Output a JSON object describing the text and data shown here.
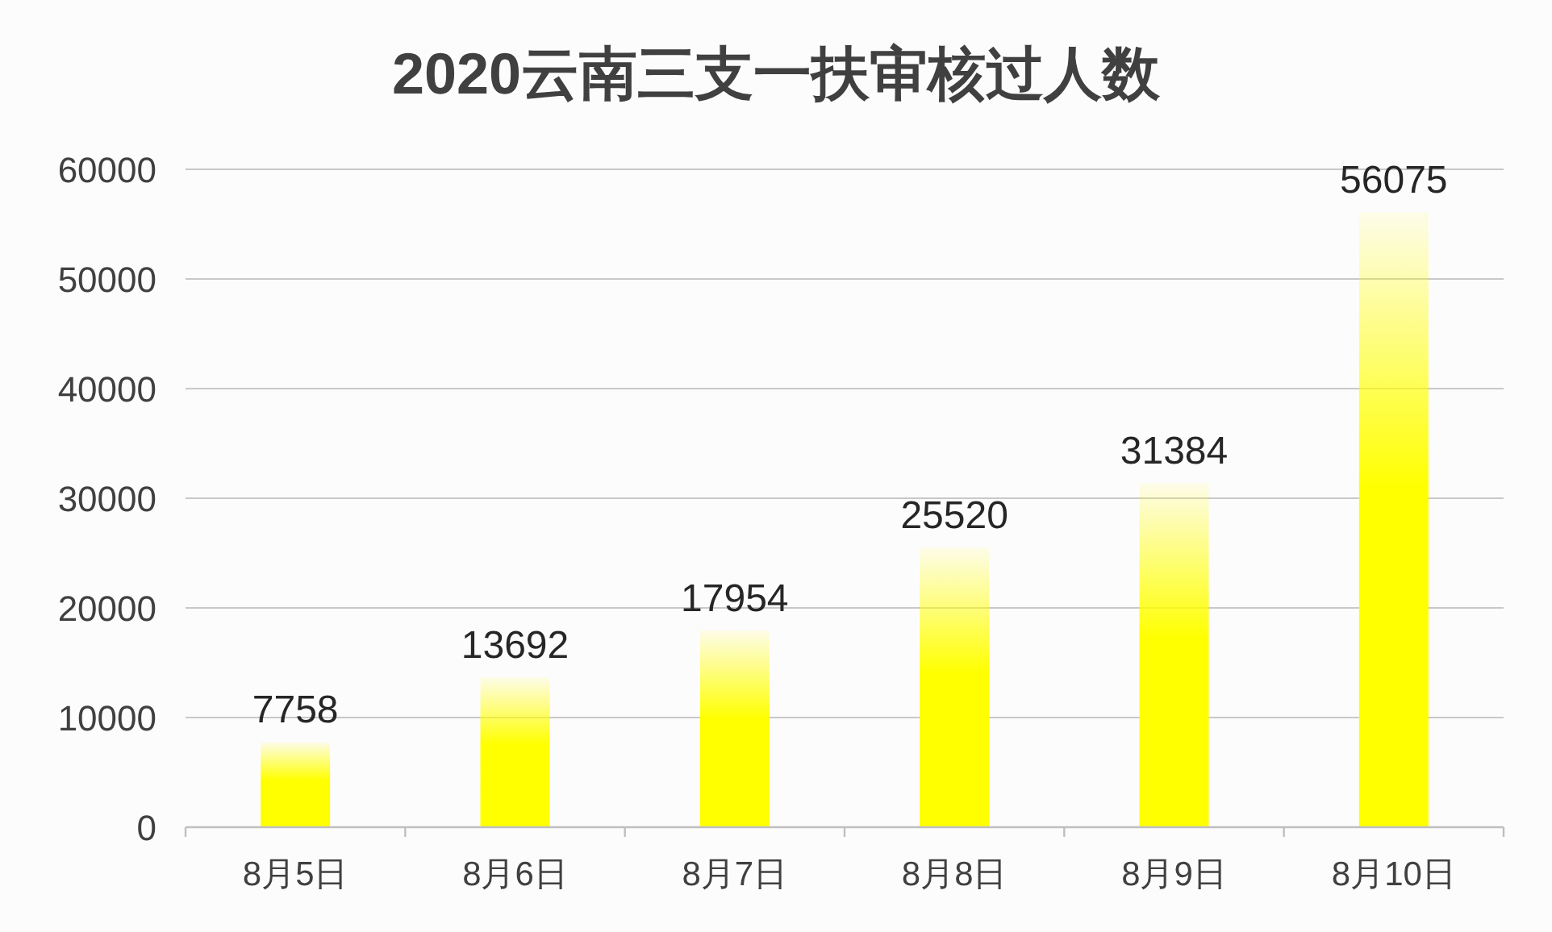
{
  "chart_data": {
    "type": "bar",
    "title": "2020云南三支一扶审核过人数",
    "categories": [
      "8月5日",
      "8月6日",
      "8月7日",
      "8月8日",
      "8月9日",
      "8月10日"
    ],
    "values": [
      7758,
      13692,
      17954,
      25520,
      31384,
      56075
    ],
    "color": "#ffff00",
    "ylim": [
      0,
      60000
    ],
    "yticks": [
      0,
      10000,
      20000,
      30000,
      40000,
      50000,
      60000
    ],
    "grid": "y",
    "data_labels": true
  }
}
